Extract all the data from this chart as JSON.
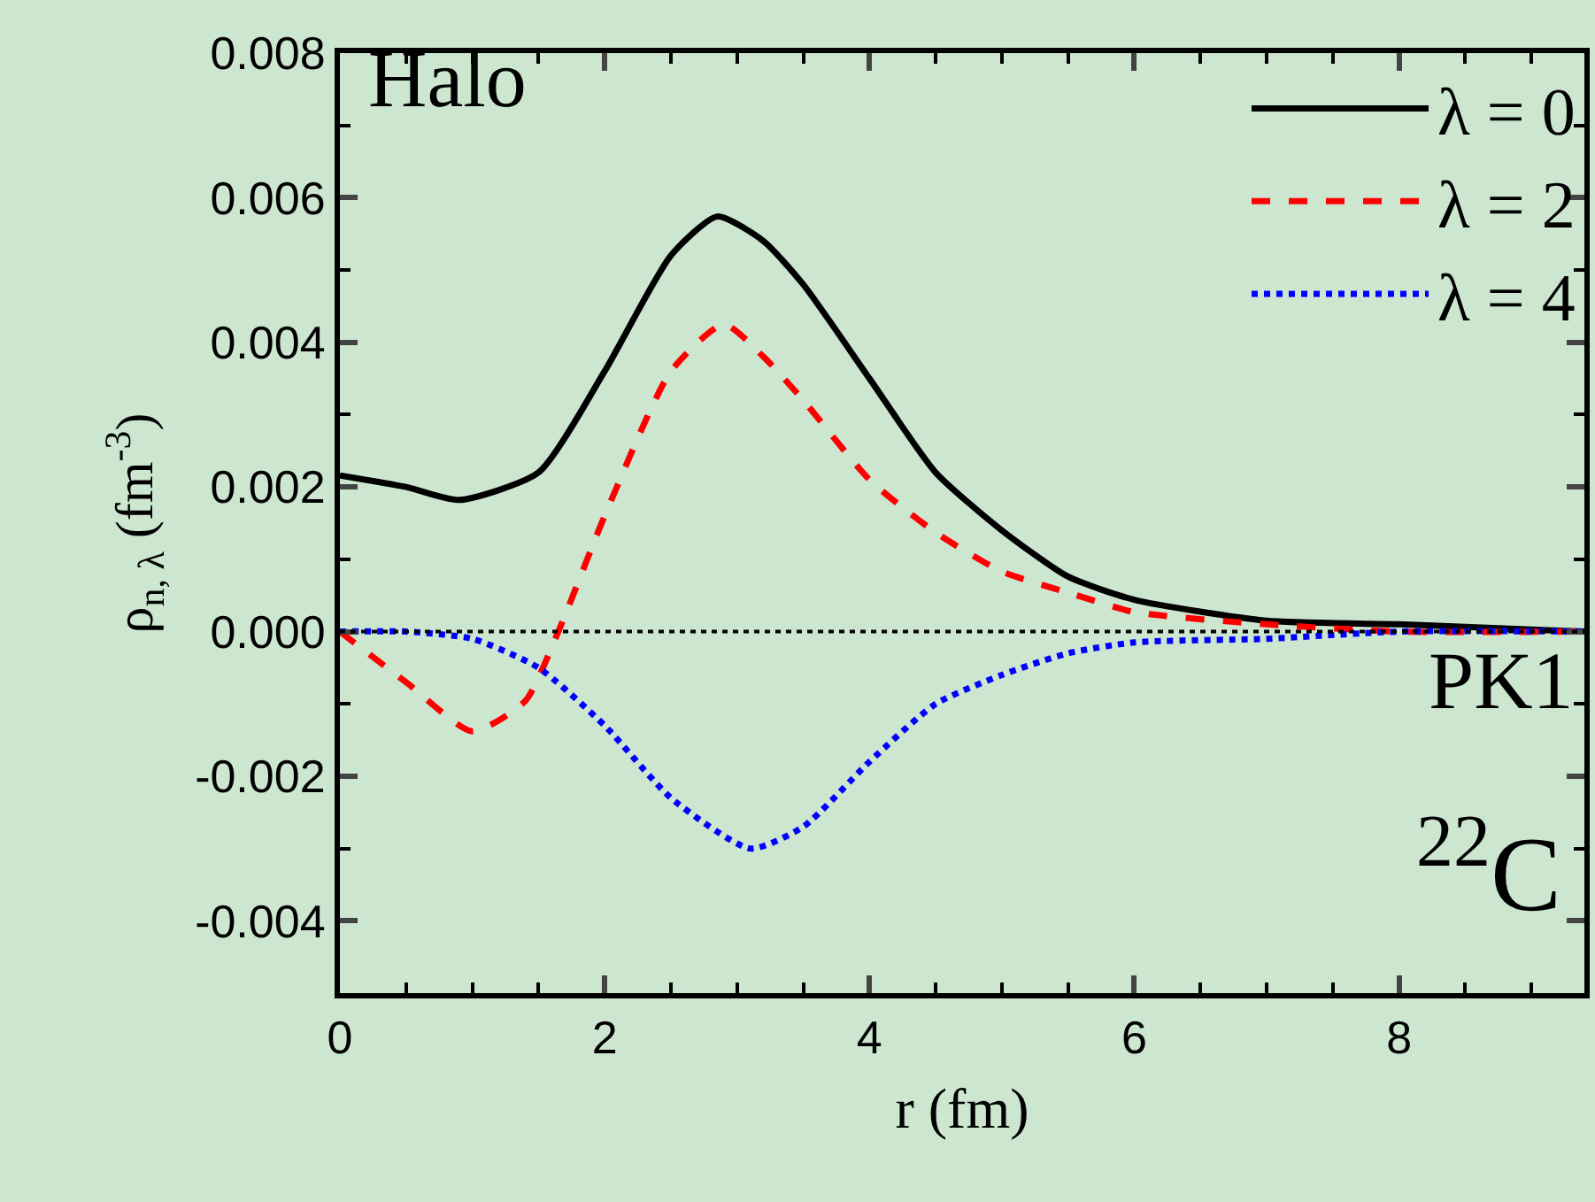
{
  "chart_data": {
    "type": "line",
    "xlabel": "r (fm)",
    "ylabel": "ρ$_{n, λ}$ (fm$^{-3}$)",
    "xlim": [
      0,
      9.4
    ],
    "xticks": [
      0,
      2,
      4,
      6,
      8
    ],
    "ylim": [
      -0.005,
      0.008
    ],
    "yticks": [
      {
        "value": -0.004,
        "label": "-0.004"
      },
      {
        "value": -0.002,
        "label": "-0.002"
      },
      {
        "value": 0,
        "label": "0.000"
      },
      {
        "value": 0.002,
        "label": "0.002"
      },
      {
        "value": 0.004,
        "label": "0.004"
      },
      {
        "value": 0.006,
        "label": "0.006"
      },
      {
        "value": 0.008,
        "label": "0.008"
      }
    ],
    "legend": "top right",
    "grid": false,
    "marker": "none",
    "series": [
      {
        "name": "λ = 0",
        "color": "#000000",
        "line_style": "solid",
        "x": [
          0,
          0.5,
          0.9,
          1.5,
          2,
          2.5,
          2.85,
          3.2,
          3.5,
          4,
          4.5,
          5,
          5.5,
          6,
          7,
          8,
          9.4
        ],
        "values": [
          0.00216,
          0.002,
          0.00182,
          0.0022,
          0.0036,
          0.0052,
          0.00574,
          0.0054,
          0.0048,
          0.0035,
          0.0022,
          0.0014,
          0.00076,
          0.00044,
          0.00015,
          0.0001,
          0
        ]
      },
      {
        "name": "λ = 2",
        "color": "#ff0000",
        "line_style": "dashed",
        "x": [
          0,
          0.5,
          1.0,
          1.4,
          1.65,
          2,
          2.5,
          2.9,
          3.2,
          3.5,
          4,
          4.5,
          5,
          5.5,
          6,
          7,
          8,
          9.4
        ],
        "values": [
          0,
          -0.0007,
          -0.00138,
          -0.00096,
          0,
          0.0016,
          0.0036,
          0.00425,
          0.0038,
          0.0032,
          0.0021,
          0.00137,
          0.00083,
          0.00054,
          0.00027,
          0.0001,
          0,
          0
        ]
      },
      {
        "name": "λ = 4",
        "color": "#0000ff",
        "line_style": "dotted",
        "x": [
          0,
          0.5,
          1.0,
          1.5,
          2,
          2.5,
          3.1,
          3.5,
          4,
          4.5,
          5,
          5.5,
          6,
          7,
          8,
          9.4
        ],
        "values": [
          0,
          0,
          -0.0001,
          -0.0005,
          -0.0013,
          -0.0023,
          -0.003,
          -0.0027,
          -0.0018,
          -0.001,
          -0.0006,
          -0.0003,
          -0.00015,
          -0.0001,
          0,
          0
        ]
      }
    ],
    "ref_lines": [
      {
        "axis": "y",
        "value": 0,
        "color": "#000000",
        "line_style": "dotted"
      }
    ],
    "annotations": [
      "Halo",
      "PK1",
      "$^{22}$C"
    ]
  }
}
